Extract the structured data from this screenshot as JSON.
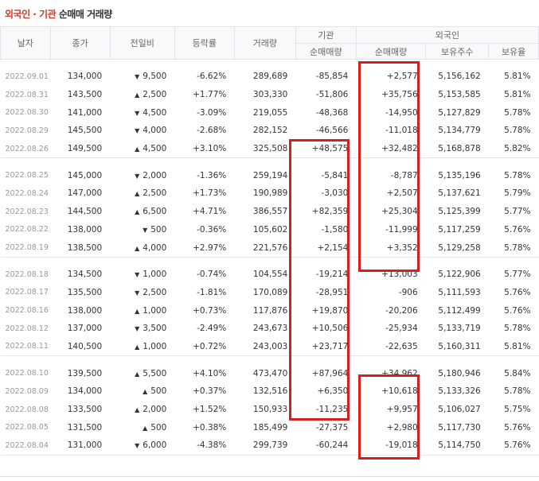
{
  "title": {
    "part1": "외국인 · 기관",
    "part2": "순매매 거래량"
  },
  "header": {
    "date": "날자",
    "close": "종가",
    "change": "전일비",
    "rate": "등락률",
    "volume": "거래량",
    "inst": "기관",
    "inst_net": "순매매량",
    "foreign": "외국인",
    "foreign_net": "순매매량",
    "foreign_shares": "보유주수",
    "foreign_ratio": "보유율"
  },
  "colors": {
    "up": "#d03a2b",
    "down": "#1e5ea8",
    "highlight": "#d32020"
  },
  "icons": {
    "up": "up-triangle-icon",
    "down": "down-triangle-icon"
  },
  "groups": [
    [
      {
        "date": "2022.09.01",
        "close": "134,000",
        "dir": "down",
        "change": "9,500",
        "rate": "-6.62%",
        "volume": "289,689",
        "inst": "-85,854",
        "foreign": "+2,577",
        "shares": "5,156,162",
        "ratio": "5.81%"
      },
      {
        "date": "2022.08.31",
        "close": "143,500",
        "dir": "up",
        "change": "2,500",
        "rate": "+1.77%",
        "volume": "303,330",
        "inst": "-51,806",
        "foreign": "+35,756",
        "shares": "5,153,585",
        "ratio": "5.81%"
      },
      {
        "date": "2022.08.30",
        "close": "141,000",
        "dir": "down",
        "change": "4,500",
        "rate": "-3.09%",
        "volume": "219,055",
        "inst": "-48,368",
        "foreign": "-14,950",
        "shares": "5,127,829",
        "ratio": "5.78%"
      },
      {
        "date": "2022.08.29",
        "close": "145,500",
        "dir": "down",
        "change": "4,000",
        "rate": "-2.68%",
        "volume": "282,152",
        "inst": "-46,566",
        "foreign": "-11,018",
        "shares": "5,134,779",
        "ratio": "5.78%"
      },
      {
        "date": "2022.08.26",
        "close": "149,500",
        "dir": "up",
        "change": "4,500",
        "rate": "+3.10%",
        "volume": "325,508",
        "inst": "+48,575",
        "foreign": "+32,482",
        "shares": "5,168,878",
        "ratio": "5.82%"
      }
    ],
    [
      {
        "date": "2022.08.25",
        "close": "145,000",
        "dir": "down",
        "change": "2,000",
        "rate": "-1.36%",
        "volume": "259,194",
        "inst": "-5,841",
        "foreign": "-8,787",
        "shares": "5,135,196",
        "ratio": "5.78%"
      },
      {
        "date": "2022.08.24",
        "close": "147,000",
        "dir": "up",
        "change": "2,500",
        "rate": "+1.73%",
        "volume": "190,989",
        "inst": "-3,030",
        "foreign": "+2,507",
        "shares": "5,137,621",
        "ratio": "5.79%"
      },
      {
        "date": "2022.08.23",
        "close": "144,500",
        "dir": "up",
        "change": "6,500",
        "rate": "+4.71%",
        "volume": "386,557",
        "inst": "+82,359",
        "foreign": "+25,304",
        "shares": "5,125,399",
        "ratio": "5.77%"
      },
      {
        "date": "2022.08.22",
        "close": "138,000",
        "dir": "down",
        "change": "500",
        "rate": "-0.36%",
        "volume": "105,602",
        "inst": "-1,580",
        "foreign": "-11,999",
        "shares": "5,117,259",
        "ratio": "5.76%"
      },
      {
        "date": "2022.08.19",
        "close": "138,500",
        "dir": "up",
        "change": "4,000",
        "rate": "+2.97%",
        "volume": "221,576",
        "inst": "+2,154",
        "foreign": "+3,352",
        "shares": "5,129,258",
        "ratio": "5.78%"
      }
    ],
    [
      {
        "date": "2022.08.18",
        "close": "134,500",
        "dir": "down",
        "change": "1,000",
        "rate": "-0.74%",
        "volume": "104,554",
        "inst": "-19,214",
        "foreign": "+13,003",
        "shares": "5,122,906",
        "ratio": "5.77%"
      },
      {
        "date": "2022.08.17",
        "close": "135,500",
        "dir": "down",
        "change": "2,500",
        "rate": "-1.81%",
        "volume": "170,089",
        "inst": "-28,951",
        "foreign": "-906",
        "shares": "5,111,593",
        "ratio": "5.76%"
      },
      {
        "date": "2022.08.16",
        "close": "138,000",
        "dir": "up",
        "change": "1,000",
        "rate": "+0.73%",
        "volume": "117,876",
        "inst": "+19,870",
        "foreign": "-20,206",
        "shares": "5,112,499",
        "ratio": "5.76%"
      },
      {
        "date": "2022.08.12",
        "close": "137,000",
        "dir": "down",
        "change": "3,500",
        "rate": "-2.49%",
        "volume": "243,673",
        "inst": "+10,506",
        "foreign": "-25,934",
        "shares": "5,133,719",
        "ratio": "5.78%"
      },
      {
        "date": "2022.08.11",
        "close": "140,500",
        "dir": "up",
        "change": "1,000",
        "rate": "+0.72%",
        "volume": "243,003",
        "inst": "+23,717",
        "foreign": "-22,635",
        "shares": "5,160,311",
        "ratio": "5.81%"
      }
    ],
    [
      {
        "date": "2022.08.10",
        "close": "139,500",
        "dir": "up",
        "change": "5,500",
        "rate": "+4.10%",
        "volume": "473,470",
        "inst": "+87,964",
        "foreign": "+34,962",
        "shares": "5,180,946",
        "ratio": "5.84%"
      },
      {
        "date": "2022.08.09",
        "close": "134,000",
        "dir": "up",
        "change": "500",
        "rate": "+0.37%",
        "volume": "132,516",
        "inst": "+6,350",
        "foreign": "+10,618",
        "shares": "5,133,326",
        "ratio": "5.78%"
      },
      {
        "date": "2022.08.08",
        "close": "133,500",
        "dir": "up",
        "change": "2,000",
        "rate": "+1.52%",
        "volume": "150,933",
        "inst": "-11,235",
        "foreign": "+9,957",
        "shares": "5,106,027",
        "ratio": "5.75%"
      },
      {
        "date": "2022.08.05",
        "close": "131,500",
        "dir": "up",
        "change": "500",
        "rate": "+0.38%",
        "volume": "185,499",
        "inst": "-27,375",
        "foreign": "+2,980",
        "shares": "5,117,730",
        "ratio": "5.76%"
      },
      {
        "date": "2022.08.04",
        "close": "131,000",
        "dir": "down",
        "change": "6,000",
        "rate": "-4.38%",
        "volume": "299,739",
        "inst": "-60,244",
        "foreign": "-19,018",
        "shares": "5,114,750",
        "ratio": "5.76%"
      }
    ]
  ]
}
